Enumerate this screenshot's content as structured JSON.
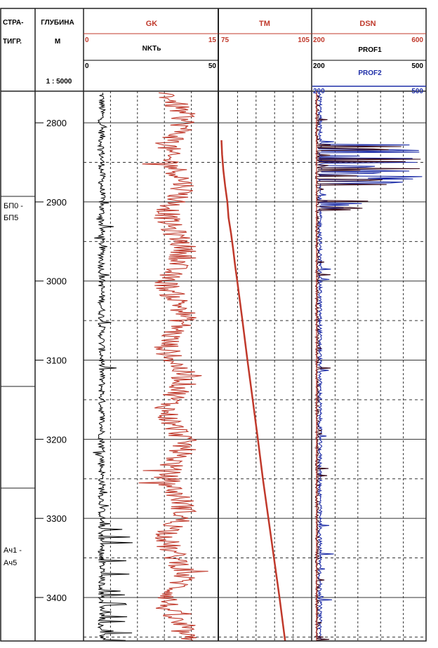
{
  "header": {
    "strat_label_1": "СТРА-",
    "strat_label_2": "ТИГР.",
    "depth_label": "ГЛУБИНА",
    "depth_unit": "М",
    "scale": "1 : 5000"
  },
  "tracks": {
    "gk": {
      "name": "GK",
      "min": "0",
      "max": "15",
      "color": "#c0392b"
    },
    "nkt": {
      "name": "NKTь",
      "min": "0",
      "max": "50",
      "color": "#000000"
    },
    "tm": {
      "name": "TM",
      "min": "75",
      "max": "105",
      "color": "#c0392b"
    },
    "dsn": {
      "name": "DSN",
      "color": "#c0392b"
    },
    "prof1": {
      "name": "PROF1",
      "min": "200",
      "max": "600",
      "color": "#000000"
    },
    "prof1_b": {
      "min": "200",
      "max": "500"
    },
    "prof2": {
      "name": "PROF2",
      "min": "200",
      "max": "500",
      "color": "#1f2fa8"
    }
  },
  "strat": [
    {
      "label_1": "БП0 -",
      "label_2": "БП5"
    },
    {
      "label_1": "Ач1  -",
      "label_2": "Ач5"
    }
  ],
  "chart_data": {
    "type": "line",
    "depth_range": [
      2760,
      3455
    ],
    "depth_ticks": [
      2800,
      2900,
      3000,
      3100,
      3200,
      3300,
      3400
    ],
    "series": [
      {
        "name": "TM",
        "x_range": [
          75,
          105
        ],
        "depth": [
          2822,
          2840,
          2860,
          2880,
          2900,
          2920,
          2940,
          2960,
          2980,
          3000,
          3050,
          3100,
          3150,
          3200,
          3250,
          3300,
          3350,
          3400,
          3455
        ],
        "values": [
          75.8,
          76.0,
          76.4,
          77.0,
          77.7,
          78.1,
          78.9,
          79.6,
          80.2,
          80.9,
          82.6,
          84.2,
          85.9,
          87.6,
          89.2,
          91.0,
          92.8,
          94.6,
          96.4
        ]
      }
    ]
  }
}
